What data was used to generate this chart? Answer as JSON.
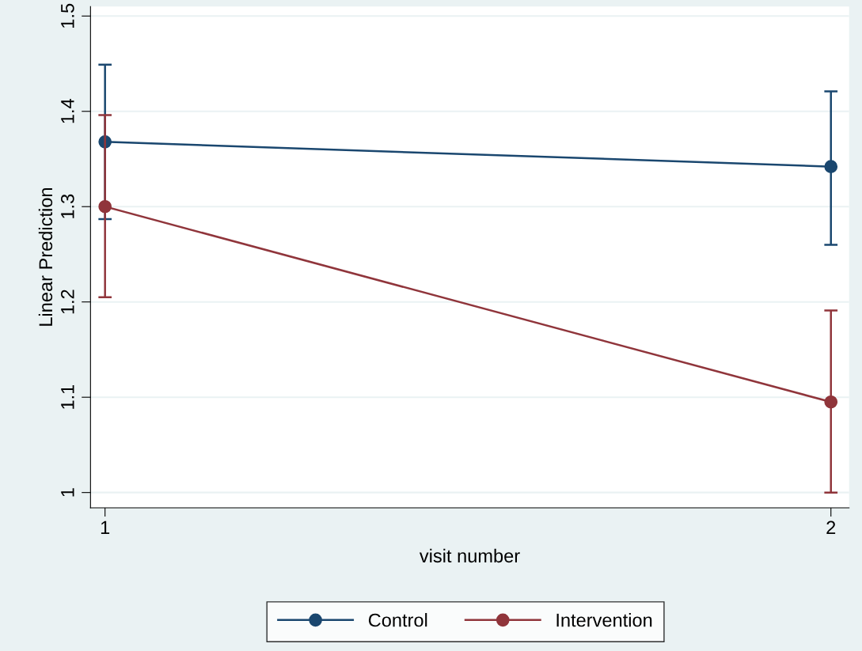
{
  "chart_data": {
    "type": "line",
    "xlabel": "visit number",
    "ylabel": "Linear Prediction",
    "x": [
      1,
      2
    ],
    "xlim": [
      0.98,
      2.025
    ],
    "xticks": [
      1,
      2
    ],
    "ylim": [
      0.984,
      1.51
    ],
    "yticks": [
      1,
      1.1,
      1.2,
      1.3,
      1.4,
      1.5
    ],
    "grid": "y",
    "legend": "bottom",
    "marker": "circle",
    "line_style": "solid",
    "series": [
      {
        "name": "Control",
        "color": "#1a476f",
        "values": [
          1.368,
          1.342
        ],
        "errors": [
          [
            1.287,
            1.449
          ],
          [
            1.26,
            1.421
          ]
        ]
      },
      {
        "name": "Intervention",
        "color": "#90353b",
        "values": [
          1.3,
          1.095
        ],
        "errors": [
          [
            1.205,
            1.396
          ],
          [
            1.0,
            1.191
          ]
        ]
      }
    ]
  }
}
